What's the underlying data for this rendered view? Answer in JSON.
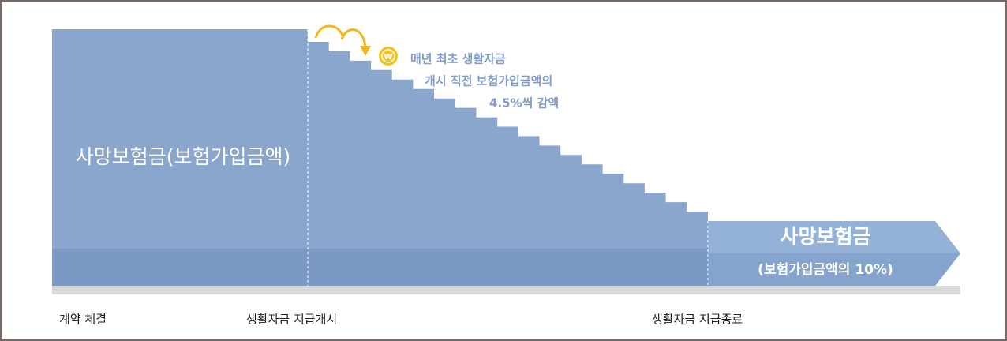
{
  "main_label": "사망보험금(보험가입금액)",
  "annotation": {
    "lines": [
      "매년 최초 생활자금",
      "개시 직전 보험가입금액의",
      "4.5%씩 감액"
    ]
  },
  "end_label": {
    "title": "사망보험금",
    "subtitle": "(보험가입금액의 10%)"
  },
  "timeline": [
    "계약 체결",
    "생활자금 지급개시",
    "생활자금 지급종료"
  ]
}
